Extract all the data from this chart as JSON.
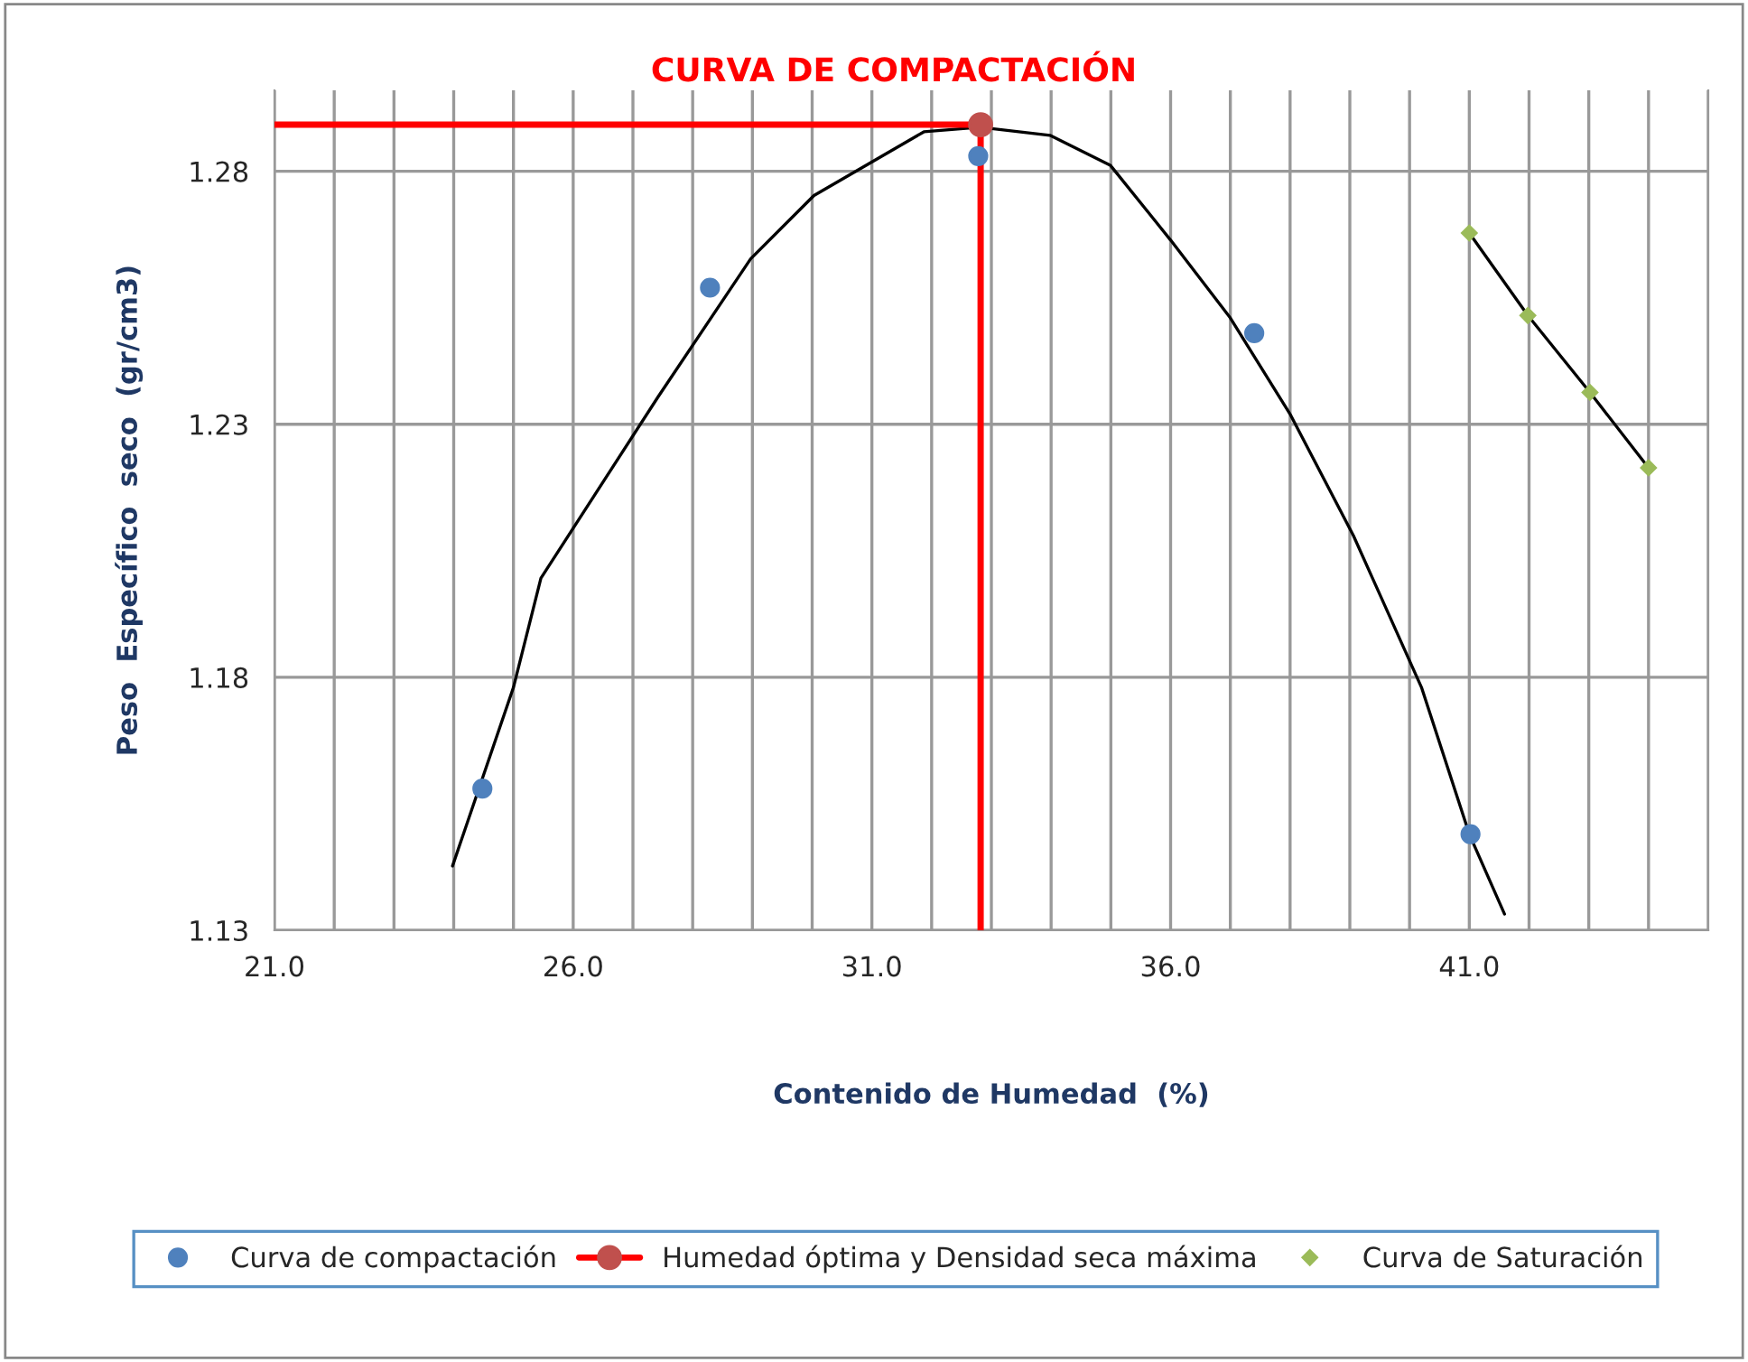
{
  "chart_data": {
    "type": "scatter",
    "title": "CURVA DE COMPACTACIÓN",
    "xlabel": "Contenido de Humedad  (%)",
    "ylabel": "Peso  Específico  seco  (gr/cm3)",
    "xlim": [
      21,
      45
    ],
    "ylim": [
      1.13,
      1.296
    ],
    "xticks": [
      {
        "value": 21,
        "label": "21.0"
      },
      {
        "value": 22,
        "label": null
      },
      {
        "value": 23,
        "label": null
      },
      {
        "value": 24,
        "label": null
      },
      {
        "value": 25,
        "label": null
      },
      {
        "value": 26,
        "label": "26.0"
      },
      {
        "value": 27,
        "label": null
      },
      {
        "value": 28,
        "label": null
      },
      {
        "value": 29,
        "label": null
      },
      {
        "value": 30,
        "label": null
      },
      {
        "value": 31,
        "label": "31.0"
      },
      {
        "value": 32,
        "label": null
      },
      {
        "value": 33,
        "label": null
      },
      {
        "value": 34,
        "label": null
      },
      {
        "value": 35,
        "label": null
      },
      {
        "value": 36,
        "label": "36.0"
      },
      {
        "value": 37,
        "label": null
      },
      {
        "value": 38,
        "label": null
      },
      {
        "value": 39,
        "label": null
      },
      {
        "value": 40,
        "label": null
      },
      {
        "value": 41,
        "label": "41.0"
      },
      {
        "value": 42,
        "label": null
      },
      {
        "value": 43,
        "label": null
      },
      {
        "value": 44,
        "label": null
      },
      {
        "value": 45,
        "label": null
      }
    ],
    "yticks": [
      1.13,
      1.18,
      1.23,
      1.28
    ],
    "grid": true,
    "legend": "bottom",
    "series": [
      {
        "name": "Curva de compactación",
        "marker": "circle",
        "color": "#4f81bd",
        "x": [
          24.48,
          28.29,
          32.78,
          37.4,
          41.02
        ],
        "values": [
          1.158,
          1.257,
          1.283,
          1.248,
          1.149
        ]
      },
      {
        "type": "line",
        "marker": "none",
        "color": "#000000",
        "x": [
          23.98,
          25.0,
          25.46,
          27.42,
          28.97,
          30.03,
          31.08,
          31.87,
          32.81,
          33.98,
          34.99,
          36.0,
          37.0,
          38.01,
          39.06,
          40.2,
          41.0,
          41.59
        ],
        "values": [
          1.1427,
          1.178,
          1.1996,
          1.2354,
          1.2627,
          1.2752,
          1.2824,
          1.2878,
          1.2887,
          1.2871,
          1.2812,
          1.2664,
          1.251,
          1.2318,
          1.208,
          1.178,
          1.149,
          1.1332
        ]
      },
      {
        "type": "line",
        "marker": "none",
        "color": "#ff0000",
        "x": [
          21,
          32.82,
          32.82
        ],
        "values": [
          1.2892,
          1.2892,
          1.13
        ]
      },
      {
        "name": "Humedad óptima y Densidad seca máxima",
        "type": "line",
        "marker": "circle",
        "color": "#c0504d",
        "x": [
          32.82
        ],
        "values": [
          1.2892
        ]
      },
      {
        "type": "line",
        "marker": "none",
        "color": "#000000",
        "x": [
          41.0,
          41.98,
          43.02,
          44.0
        ],
        "values": [
          1.2678,
          1.2515,
          1.2363,
          1.2214
        ]
      },
      {
        "name": "Curva de Saturación",
        "marker": "diamond",
        "color": "#9bbb59",
        "x": [
          41.0,
          41.98,
          43.02,
          44.0
        ],
        "values": [
          1.2678,
          1.2515,
          1.2363,
          1.2214
        ]
      }
    ]
  }
}
